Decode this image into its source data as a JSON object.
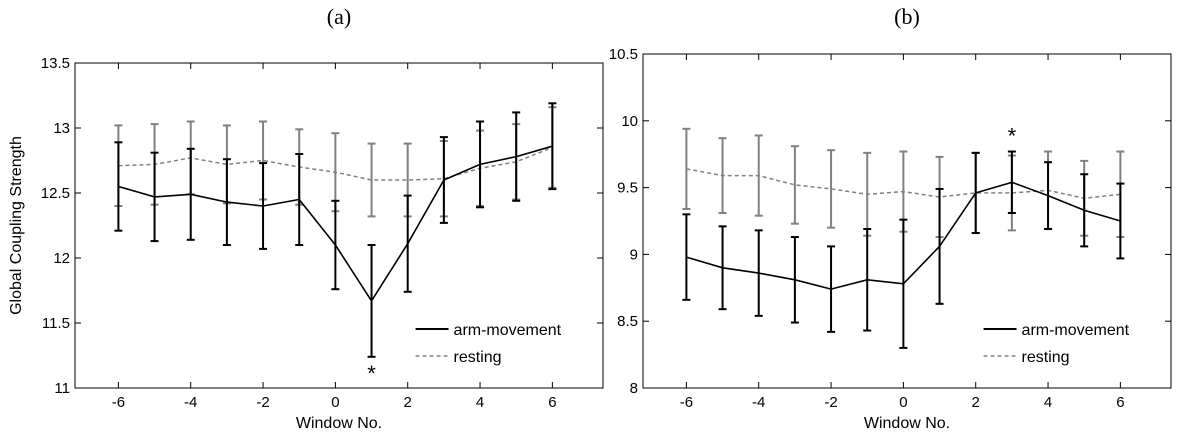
{
  "chart_data": [
    {
      "panel": "(a)",
      "type": "line",
      "xlabel": "Window No.",
      "ylabel": "Global Coupling Strength",
      "xlim": [
        -7.2,
        7.4
      ],
      "ylim": [
        11,
        13.5
      ],
      "xticks": [
        -6,
        -4,
        -2,
        0,
        2,
        4,
        6
      ],
      "xtick_labels": [
        "-6",
        "-4",
        "-2",
        "0",
        "2",
        "4",
        "6"
      ],
      "yticks": [
        11,
        11.5,
        12,
        12.5,
        13,
        13.5
      ],
      "ytick_labels": [
        "11",
        "11.5",
        "12",
        "12.5",
        "13",
        "13.5"
      ],
      "x": [
        -6,
        -5,
        -4,
        -3,
        -2,
        -1,
        0,
        1,
        2,
        3,
        4,
        5,
        6
      ],
      "legend_position": "bottom-right",
      "series": [
        {
          "name": "arm-movement",
          "style": "solid",
          "color": "#000000",
          "values": [
            12.55,
            12.47,
            12.49,
            12.43,
            12.4,
            12.45,
            12.1,
            11.67,
            12.11,
            12.6,
            12.72,
            12.78,
            12.86
          ],
          "errors": [
            0.34,
            0.34,
            0.35,
            0.33,
            0.33,
            0.35,
            0.34,
            0.43,
            0.37,
            0.33,
            0.33,
            0.34,
            0.33
          ]
        },
        {
          "name": "resting",
          "style": "dashed",
          "color": "#808080",
          "values": [
            12.71,
            12.72,
            12.77,
            12.72,
            12.75,
            12.7,
            12.66,
            12.6,
            12.6,
            12.61,
            12.69,
            12.74,
            12.85
          ],
          "errors": [
            0.31,
            0.31,
            0.28,
            0.3,
            0.3,
            0.29,
            0.3,
            0.28,
            0.28,
            0.29,
            0.29,
            0.29,
            0.31
          ]
        }
      ],
      "annotations": [
        {
          "text": "*",
          "x": 1
        }
      ]
    },
    {
      "panel": "(b)",
      "type": "line",
      "xlabel": "Window No.",
      "ylabel": "",
      "xlim": [
        -7.2,
        7.4
      ],
      "ylim": [
        8,
        10.5
      ],
      "xticks": [
        -6,
        -4,
        -2,
        0,
        2,
        4,
        6
      ],
      "xtick_labels": [
        "-6",
        "-4",
        "-2",
        "0",
        "2",
        "4",
        "6"
      ],
      "yticks": [
        8,
        8.5,
        9,
        9.5,
        10,
        10.5
      ],
      "ytick_labels": [
        "8",
        "8.5",
        "9",
        "9.5",
        "10",
        "10.5"
      ],
      "x": [
        -6,
        -5,
        -4,
        -3,
        -2,
        -1,
        0,
        1,
        2,
        3,
        4,
        5,
        6
      ],
      "legend_position": "bottom-right",
      "series": [
        {
          "name": "arm-movement",
          "style": "solid",
          "color": "#000000",
          "values": [
            8.98,
            8.9,
            8.86,
            8.81,
            8.74,
            8.81,
            8.78,
            9.06,
            9.46,
            9.54,
            9.44,
            9.33,
            9.25
          ],
          "errors": [
            0.32,
            0.31,
            0.32,
            0.32,
            0.32,
            0.38,
            0.48,
            0.43,
            0.3,
            0.23,
            0.25,
            0.27,
            0.28
          ]
        },
        {
          "name": "resting",
          "style": "dashed",
          "color": "#808080",
          "values": [
            9.64,
            9.59,
            9.59,
            9.52,
            9.49,
            9.45,
            9.47,
            9.43,
            9.46,
            9.46,
            9.48,
            9.42,
            9.45
          ],
          "errors": [
            0.3,
            0.28,
            0.3,
            0.29,
            0.29,
            0.31,
            0.3,
            0.3,
            0.3,
            0.28,
            0.29,
            0.28,
            0.32
          ]
        }
      ],
      "annotations": [
        {
          "text": "*",
          "x": 3
        }
      ]
    }
  ]
}
